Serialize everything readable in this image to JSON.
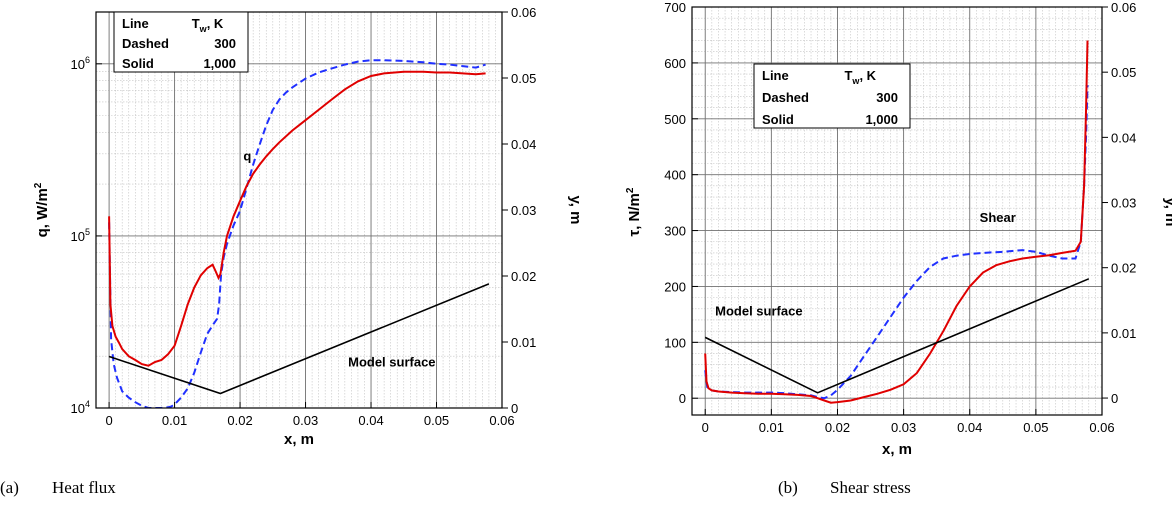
{
  "colors": {
    "dashed": "#2030ff",
    "solid": "#e00000",
    "surface": "#000000"
  },
  "chart_data": [
    {
      "type": "line",
      "caption_letter": "(a)",
      "caption_text": "Heat flux",
      "xlabel": "x, m",
      "ylabel_left_main": "q, W/m",
      "ylabel_left_sup": "2",
      "ylabel_right": "y, m",
      "xlim": [
        -0.002,
        0.06
      ],
      "x_ticks": [
        {
          "v": 0,
          "label": "0"
        },
        {
          "v": 0.01,
          "label": "0.01"
        },
        {
          "v": 0.02,
          "label": "0.02"
        },
        {
          "v": 0.03,
          "label": "0.03"
        },
        {
          "v": 0.04,
          "label": "0.04"
        },
        {
          "v": 0.05,
          "label": "0.05"
        },
        {
          "v": 0.06,
          "label": "0.06"
        }
      ],
      "ylim_left": [
        10000,
        2000000
      ],
      "y_scale_left": "log",
      "y_ticks_left": [
        {
          "v": 10000,
          "label": "10",
          "sup": "4"
        },
        {
          "v": 100000,
          "label": "10",
          "sup": "5"
        },
        {
          "v": 1000000,
          "label": "10",
          "sup": "6"
        }
      ],
      "ylim_right": [
        0,
        0.06
      ],
      "y_ticks_right": [
        {
          "v": 0,
          "label": "0"
        },
        {
          "v": 0.01,
          "label": "0.01"
        },
        {
          "v": 0.02,
          "label": "0.02"
        },
        {
          "v": 0.03,
          "label": "0.03"
        },
        {
          "v": 0.04,
          "label": "0.04"
        },
        {
          "v": 0.05,
          "label": "0.05"
        },
        {
          "v": 0.06,
          "label": "0.06"
        }
      ],
      "grid": true,
      "legend": {
        "placement": "top-left",
        "header_line": "Line",
        "header_tw_main": "T",
        "header_tw_sub": "w",
        "header_tw_unit": ", K",
        "rows": [
          {
            "name": "Dashed",
            "value": "300"
          },
          {
            "name": "Solid",
            "value": "1,000"
          }
        ]
      },
      "annotations": [
        {
          "text": "q",
          "x": 0.0205,
          "y_right": 0.0375
        },
        {
          "text": "Model surface",
          "x": 0.0365,
          "y_right": 0.0063
        }
      ],
      "series": [
        {
          "style": "dashed",
          "axis": "left",
          "x": [
            0,
            0.0003,
            0.0007,
            0.0012,
            0.002,
            0.003,
            0.004,
            0.005,
            0.006,
            0.007,
            0.008,
            0.009,
            0.0095,
            0.01,
            0.011,
            0.012,
            0.013,
            0.014,
            0.015,
            0.016,
            0.0165,
            0.0168,
            0.0171,
            0.0175,
            0.018,
            0.019,
            0.02,
            0.021,
            0.022,
            0.023,
            0.024,
            0.025,
            0.026,
            0.027,
            0.028,
            0.03,
            0.032,
            0.034,
            0.036,
            0.038,
            0.04,
            0.042,
            0.045,
            0.048,
            0.05,
            0.052,
            0.054,
            0.056,
            0.0575
          ],
          "y": [
            120000,
            25000,
            18000,
            15000,
            12500,
            11500,
            10800,
            10300,
            10000,
            10000,
            10000,
            10100,
            10200,
            10500,
            11500,
            13000,
            16000,
            21000,
            27000,
            31000,
            33000,
            40000,
            60000,
            75000,
            90000,
            115000,
            140000,
            190000,
            260000,
            340000,
            440000,
            540000,
            620000,
            680000,
            730000,
            820000,
            890000,
            940000,
            990000,
            1030000,
            1050000,
            1050000,
            1040000,
            1020000,
            1000000,
            990000,
            970000,
            950000,
            990000
          ]
        },
        {
          "style": "solid",
          "axis": "left",
          "x": [
            0,
            0.0002,
            0.0005,
            0.001,
            0.0015,
            0.002,
            0.003,
            0.004,
            0.005,
            0.006,
            0.007,
            0.008,
            0.009,
            0.01,
            0.011,
            0.012,
            0.013,
            0.014,
            0.015,
            0.0158,
            0.0163,
            0.0167,
            0.017,
            0.0175,
            0.018,
            0.019,
            0.02,
            0.021,
            0.022,
            0.023,
            0.024,
            0.025,
            0.026,
            0.028,
            0.03,
            0.032,
            0.034,
            0.036,
            0.038,
            0.04,
            0.042,
            0.045,
            0.048,
            0.05,
            0.052,
            0.054,
            0.056,
            0.0575
          ],
          "y": [
            130000,
            40000,
            30000,
            26000,
            24000,
            22000,
            20000,
            19000,
            18000,
            17600,
            18500,
            19000,
            20500,
            23000,
            30000,
            40000,
            50000,
            59000,
            65000,
            68000,
            62000,
            57000,
            60000,
            80000,
            100000,
            130000,
            160000,
            195000,
            230000,
            260000,
            290000,
            320000,
            350000,
            410000,
            470000,
            540000,
            620000,
            710000,
            790000,
            850000,
            880000,
            900000,
            900000,
            890000,
            890000,
            880000,
            870000,
            880000
          ]
        },
        {
          "style": "surface",
          "axis": "right",
          "x": [
            0,
            0.017,
            0.058
          ],
          "y": [
            0.0078,
            0.0022,
            0.0188
          ]
        }
      ]
    },
    {
      "type": "line",
      "caption_letter": "(b)",
      "caption_text": "Shear stress",
      "xlabel": "x, m",
      "ylabel_left_main": "τ, N/m",
      "ylabel_left_sup": "2",
      "ylabel_right": "y, m",
      "xlim": [
        -0.002,
        0.06
      ],
      "x_ticks": [
        {
          "v": 0,
          "label": "0"
        },
        {
          "v": 0.01,
          "label": "0.01"
        },
        {
          "v": 0.02,
          "label": "0.02"
        },
        {
          "v": 0.03,
          "label": "0.03"
        },
        {
          "v": 0.04,
          "label": "0.04"
        },
        {
          "v": 0.05,
          "label": "0.05"
        },
        {
          "v": 0.06,
          "label": "0.06"
        }
      ],
      "ylim_left": [
        -30,
        700
      ],
      "y_scale_left": "linear",
      "y_ticks_left": [
        {
          "v": 0,
          "label": "0"
        },
        {
          "v": 100,
          "label": "100"
        },
        {
          "v": 200,
          "label": "200"
        },
        {
          "v": 300,
          "label": "300"
        },
        {
          "v": 400,
          "label": "400"
        },
        {
          "v": 500,
          "label": "500"
        },
        {
          "v": 600,
          "label": "600"
        },
        {
          "v": 700,
          "label": "700"
        }
      ],
      "ylim_right": [
        -0.0026,
        0.06
      ],
      "y_ticks_right": [
        {
          "v": 0,
          "label": "0"
        },
        {
          "v": 0.01,
          "label": "0.01"
        },
        {
          "v": 0.02,
          "label": "0.02"
        },
        {
          "v": 0.03,
          "label": "0.03"
        },
        {
          "v": 0.04,
          "label": "0.04"
        },
        {
          "v": 0.05,
          "label": "0.05"
        },
        {
          "v": 0.06,
          "label": "0.06"
        }
      ],
      "grid": true,
      "legend": {
        "placement": "top-center",
        "header_line": "Line",
        "header_tw_main": "T",
        "header_tw_sub": "w",
        "header_tw_unit": ", K",
        "rows": [
          {
            "name": "Dashed",
            "value": "300"
          },
          {
            "name": "Solid",
            "value": "1,000"
          }
        ]
      },
      "annotations": [
        {
          "text": "Shear",
          "x": 0.0415,
          "y_left": 315
        },
        {
          "text": "Model surface",
          "x": 0.0015,
          "y_left": 148
        }
      ],
      "series": [
        {
          "style": "dashed",
          "axis": "left",
          "x": [
            0,
            0.0003,
            0.001,
            0.002,
            0.004,
            0.006,
            0.008,
            0.01,
            0.012,
            0.014,
            0.016,
            0.017,
            0.018,
            0.019,
            0.02,
            0.022,
            0.024,
            0.026,
            0.028,
            0.03,
            0.032,
            0.034,
            0.036,
            0.038,
            0.04,
            0.042,
            0.045,
            0.048,
            0.05,
            0.052,
            0.054,
            0.056,
            0.0568,
            0.0573,
            0.0576,
            0.0578
          ],
          "y": [
            50,
            20,
            14,
            12,
            11,
            10,
            10,
            10,
            9,
            7,
            5,
            2,
            0,
            5,
            15,
            40,
            75,
            110,
            145,
            180,
            210,
            235,
            250,
            255,
            258,
            260,
            262,
            265,
            262,
            255,
            250,
            250,
            280,
            380,
            470,
            560
          ]
        },
        {
          "style": "solid",
          "axis": "left",
          "x": [
            0,
            0.0002,
            0.0005,
            0.001,
            0.002,
            0.004,
            0.006,
            0.008,
            0.01,
            0.012,
            0.014,
            0.016,
            0.017,
            0.018,
            0.019,
            0.02,
            0.022,
            0.024,
            0.026,
            0.028,
            0.03,
            0.032,
            0.034,
            0.036,
            0.038,
            0.04,
            0.042,
            0.044,
            0.046,
            0.048,
            0.05,
            0.052,
            0.054,
            0.056,
            0.0568,
            0.0573,
            0.0576,
            0.0578
          ],
          "y": [
            80,
            30,
            18,
            14,
            12,
            10,
            9,
            8,
            8,
            7,
            6,
            4,
            0,
            -4,
            -8,
            -7,
            -4,
            2,
            8,
            15,
            25,
            45,
            80,
            120,
            165,
            200,
            225,
            238,
            245,
            250,
            253,
            256,
            260,
            264,
            280,
            380,
            520,
            640
          ]
        },
        {
          "style": "surface",
          "axis": "right",
          "x": [
            0,
            0.017,
            0.058
          ],
          "y": [
            0.0093,
            0.0008,
            0.0183
          ]
        }
      ]
    }
  ]
}
